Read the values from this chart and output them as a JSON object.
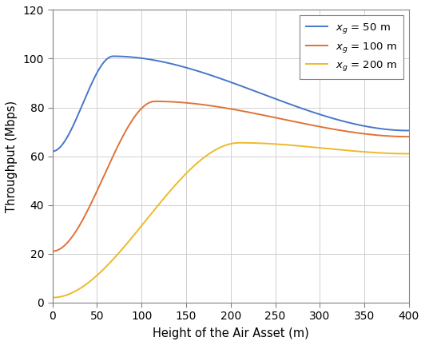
{
  "xlabel": "Height of the Air Asset (m)",
  "ylabel": "Throughput (Mbps)",
  "xlim": [
    0,
    400
  ],
  "ylim": [
    0,
    120
  ],
  "xticks": [
    0,
    50,
    100,
    150,
    200,
    250,
    300,
    350,
    400
  ],
  "yticks": [
    0,
    20,
    40,
    60,
    80,
    100,
    120
  ],
  "legend": [
    {
      "label": "$x_g$ = 50 m",
      "color": "#4777C9"
    },
    {
      "label": "$x_g$ = 100 m",
      "color": "#E07236"
    },
    {
      "label": "$x_g$ = 200 m",
      "color": "#EDBA2A"
    }
  ],
  "curves": [
    {
      "color": "#4777C9",
      "y0": 62.0,
      "peak_x": 68,
      "peak_y": 101.0,
      "decay_rate": 0.0018,
      "y400": 70.5
    },
    {
      "color": "#E07236",
      "y0": 21.0,
      "peak_x": 115,
      "peak_y": 82.5,
      "decay_rate": 0.0012,
      "y400": 68.0
    },
    {
      "color": "#EDBA2A",
      "y0": 2.0,
      "peak_x": 210,
      "peak_y": 65.5,
      "decay_rate": 0.0008,
      "y400": 61.0
    }
  ],
  "background_color": "#ffffff",
  "grid_color": "#d0d0d0",
  "spine_color": "#808080",
  "figsize": [
    5.32,
    4.32
  ],
  "dpi": 100
}
